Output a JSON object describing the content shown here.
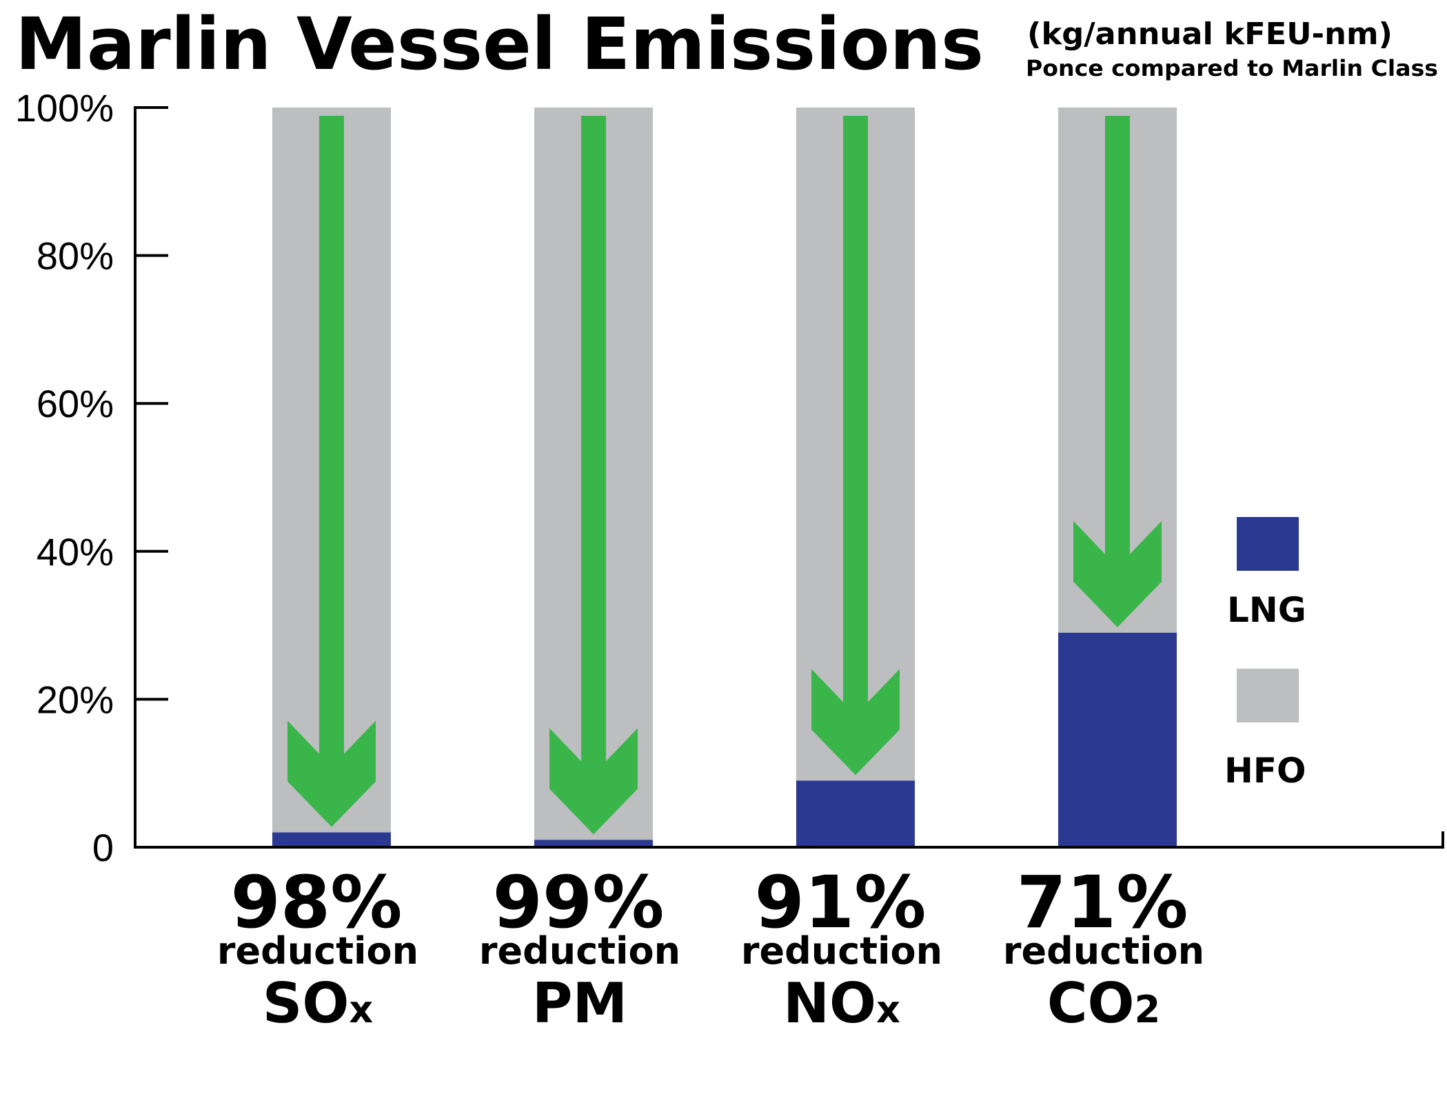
{
  "chart_data": {
    "type": "bar",
    "title": "Marlin Vessel Emissions",
    "subtitle_1": "(kg/annual kFEU-nm)",
    "subtitle_2": "Ponce compared to Marlin Class",
    "y_tick_labels": [
      "0",
      "20%",
      "40%",
      "60%",
      "80%",
      "100%"
    ],
    "ylim": [
      0,
      100
    ],
    "stacked": true,
    "categories": [
      {
        "pollutant": "SO",
        "subscript": "x",
        "reduction_pct": "98%",
        "reduction_word": "reduction"
      },
      {
        "pollutant": "PM",
        "subscript": "",
        "reduction_pct": "99%",
        "reduction_word": "reduction"
      },
      {
        "pollutant": "NO",
        "subscript": "x",
        "reduction_pct": "91%",
        "reduction_word": "reduction"
      },
      {
        "pollutant": "CO",
        "subscript": "2",
        "reduction_pct": "71%",
        "reduction_word": "reduction"
      }
    ],
    "series": [
      {
        "name": "LNG",
        "color": "#2b3990",
        "values": [
          2,
          1,
          9,
          29
        ]
      },
      {
        "name": "HFO",
        "color": "#bcbec0",
        "values": [
          98,
          99,
          91,
          71
        ]
      }
    ],
    "annotations": {
      "arrow_color": "#39b54a",
      "arrow_direction": "down"
    },
    "legend_position": "right",
    "grid": false
  }
}
